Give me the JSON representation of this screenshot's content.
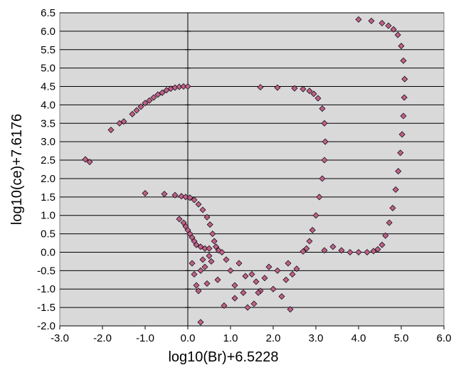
{
  "chart_data": {
    "type": "scatter",
    "title": "",
    "xlabel": "log10(Br)+6.5228",
    "ylabel": "log10(ce)+7.6176",
    "xlim": [
      -3.0,
      6.0
    ],
    "ylim": [
      -2.0,
      6.5
    ],
    "x_ticks": [
      -3.0,
      -2.0,
      -1.0,
      0.0,
      1.0,
      2.0,
      3.0,
      4.0,
      5.0,
      6.0
    ],
    "x_tick_labels": [
      "-3.0",
      "-2.0",
      "-1.0",
      "0.0",
      "1.0",
      "2.0",
      "3.0",
      "4.0",
      "5.0",
      "6.0"
    ],
    "y_ticks": [
      -2.0,
      -1.5,
      -1.0,
      -0.5,
      0.0,
      0.5,
      1.0,
      1.5,
      2.0,
      2.5,
      3.0,
      3.5,
      4.0,
      4.5,
      5.0,
      5.5,
      6.0,
      6.5
    ],
    "y_tick_labels": [
      "-2.0",
      "-1.5",
      "-1.0",
      "-0.5",
      "0.0",
      "0.5",
      "1.0",
      "1.5",
      "2.0",
      "2.5",
      "3.0",
      "3.5",
      "4.0",
      "4.5",
      "5.0",
      "5.5",
      "6.0",
      "6.5"
    ],
    "grid": "horizontal",
    "legend": "none",
    "plot_background": "#d9d9d9",
    "marker": "diamond",
    "marker_fill": "#c0608a",
    "marker_edge": "#000000",
    "series": [
      {
        "values": [
          [
            -2.4,
            2.52
          ],
          [
            -2.3,
            2.45
          ],
          [
            -1.8,
            3.32
          ],
          [
            -1.6,
            3.5
          ],
          [
            -1.5,
            3.55
          ],
          [
            -1.3,
            3.75
          ],
          [
            -1.2,
            3.85
          ],
          [
            -1.1,
            3.95
          ],
          [
            -1.0,
            4.05
          ],
          [
            -0.9,
            4.12
          ],
          [
            -0.8,
            4.2
          ],
          [
            -0.7,
            4.28
          ],
          [
            -0.6,
            4.33
          ],
          [
            -0.5,
            4.4
          ],
          [
            -0.4,
            4.44
          ],
          [
            -0.3,
            4.47
          ],
          [
            -0.2,
            4.49
          ],
          [
            -0.1,
            4.5
          ],
          [
            0.0,
            4.5
          ],
          [
            -1.0,
            1.6
          ],
          [
            -0.55,
            1.58
          ],
          [
            -0.3,
            1.55
          ],
          [
            -0.15,
            1.52
          ],
          [
            -0.05,
            1.5
          ],
          [
            0.05,
            1.48
          ],
          [
            0.15,
            1.42
          ],
          [
            0.25,
            1.3
          ],
          [
            0.35,
            1.15
          ],
          [
            0.45,
            0.95
          ],
          [
            0.52,
            0.75
          ],
          [
            0.58,
            0.5
          ],
          [
            0.62,
            0.3
          ],
          [
            0.66,
            0.15
          ],
          [
            0.72,
            0.05
          ],
          [
            0.8,
            0.0
          ],
          [
            -0.2,
            0.9
          ],
          [
            -0.1,
            0.8
          ],
          [
            -0.05,
            0.7
          ],
          [
            0.0,
            0.6
          ],
          [
            0.05,
            0.5
          ],
          [
            0.1,
            0.4
          ],
          [
            0.15,
            0.3
          ],
          [
            0.2,
            0.2
          ],
          [
            0.3,
            0.15
          ],
          [
            0.4,
            0.1
          ],
          [
            0.5,
            0.1
          ],
          [
            0.1,
            -0.3
          ],
          [
            0.15,
            -0.6
          ],
          [
            0.2,
            -0.9
          ],
          [
            0.25,
            -1.05
          ],
          [
            0.3,
            -0.5
          ],
          [
            0.3,
            -1.9
          ],
          [
            0.35,
            -0.2
          ],
          [
            0.4,
            -0.4
          ],
          [
            0.45,
            -0.85
          ],
          [
            0.5,
            -0.1
          ],
          [
            0.55,
            -0.25
          ],
          [
            0.9,
            -0.2
          ],
          [
            1.0,
            -0.5
          ],
          [
            1.1,
            -0.9
          ],
          [
            1.2,
            -0.3
          ],
          [
            1.3,
            -1.1
          ],
          [
            1.4,
            -1.5
          ],
          [
            1.5,
            -0.6
          ],
          [
            1.6,
            -0.8
          ],
          [
            1.7,
            -1.05
          ],
          [
            1.8,
            -0.7
          ],
          [
            1.9,
            -0.4
          ],
          [
            2.0,
            -1.0
          ],
          [
            2.1,
            -0.5
          ],
          [
            2.2,
            -1.2
          ],
          [
            2.3,
            -0.75
          ],
          [
            2.35,
            -0.3
          ],
          [
            2.4,
            -1.55
          ],
          [
            2.45,
            -0.6
          ],
          [
            2.55,
            -0.45
          ],
          [
            1.1,
            -1.25
          ],
          [
            1.55,
            -1.4
          ],
          [
            1.65,
            -1.1
          ],
          [
            0.85,
            -1.45
          ],
          [
            1.35,
            -0.65
          ],
          [
            0.7,
            -0.75
          ],
          [
            1.7,
            4.48
          ],
          [
            2.1,
            4.47
          ],
          [
            2.5,
            4.45
          ],
          [
            2.7,
            4.43
          ],
          [
            2.85,
            4.38
          ],
          [
            2.95,
            4.3
          ],
          [
            3.05,
            4.18
          ],
          [
            3.15,
            3.9
          ],
          [
            3.2,
            3.5
          ],
          [
            3.22,
            3.0
          ],
          [
            3.2,
            2.5
          ],
          [
            3.15,
            2.0
          ],
          [
            3.08,
            1.5
          ],
          [
            3.0,
            1.0
          ],
          [
            2.92,
            0.6
          ],
          [
            2.85,
            0.3
          ],
          [
            2.78,
            0.1
          ],
          [
            2.7,
            0.02
          ],
          [
            4.0,
            6.32
          ],
          [
            4.3,
            6.28
          ],
          [
            4.55,
            6.22
          ],
          [
            4.7,
            6.15
          ],
          [
            4.82,
            6.05
          ],
          [
            4.92,
            5.9
          ],
          [
            5.0,
            5.6
          ],
          [
            5.05,
            5.2
          ],
          [
            5.08,
            4.7
          ],
          [
            5.07,
            4.2
          ],
          [
            5.05,
            3.7
          ],
          [
            5.02,
            3.2
          ],
          [
            4.98,
            2.7
          ],
          [
            4.93,
            2.2
          ],
          [
            4.87,
            1.7
          ],
          [
            4.8,
            1.2
          ],
          [
            4.72,
            0.8
          ],
          [
            4.63,
            0.45
          ],
          [
            4.55,
            0.2
          ],
          [
            4.45,
            0.08
          ],
          [
            4.35,
            0.03
          ],
          [
            4.2,
            0.0
          ],
          [
            4.0,
            0.0
          ],
          [
            3.8,
            0.0
          ],
          [
            3.6,
            0.05
          ],
          [
            3.4,
            0.15
          ],
          [
            3.2,
            0.05
          ]
        ]
      }
    ]
  }
}
